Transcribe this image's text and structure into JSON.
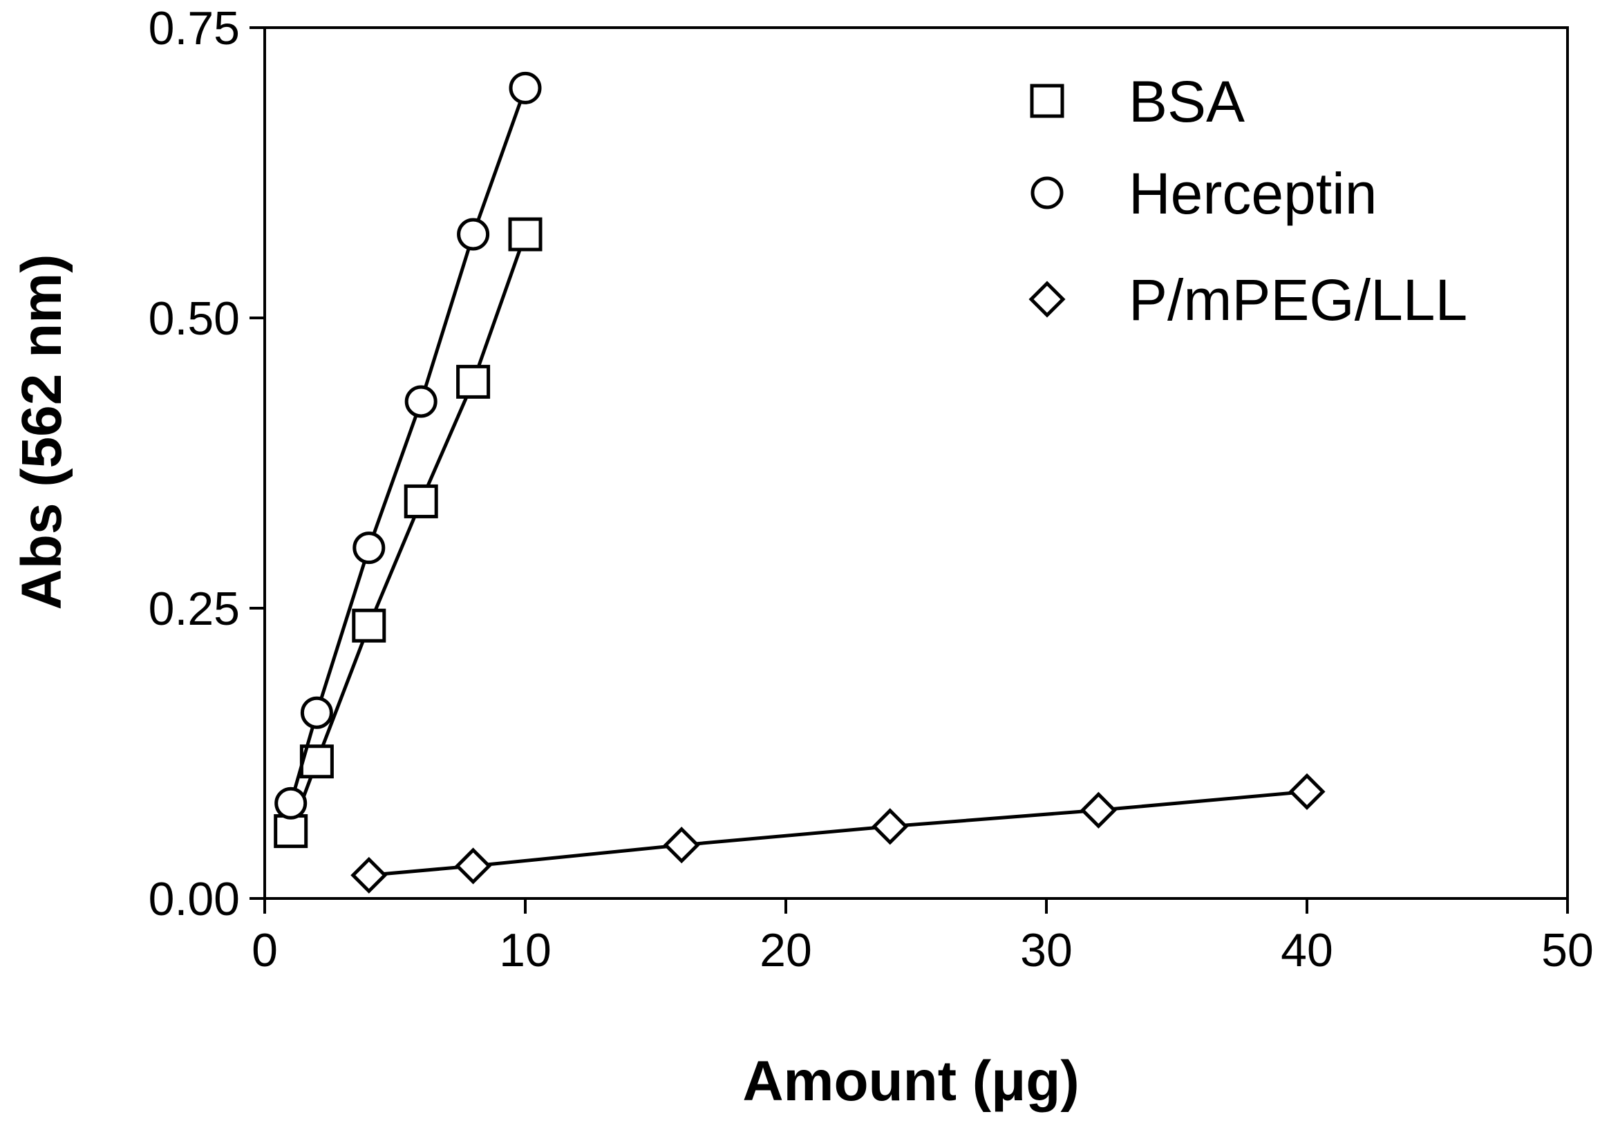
{
  "chart_data": {
    "type": "scatter",
    "title": "",
    "xlabel": "Amount (μg)",
    "ylabel": "Abs (562 nm)",
    "xlim": [
      0,
      50
    ],
    "ylim": [
      0,
      0.75
    ],
    "xticks": [
      "0",
      "10",
      "20",
      "30",
      "40",
      "50"
    ],
    "yticks": [
      "0.00",
      "0.25",
      "0.50",
      "0.75"
    ],
    "xtick_values": [
      0,
      10,
      20,
      30,
      40,
      50
    ],
    "ytick_values": [
      0,
      0.25,
      0.5,
      0.75
    ],
    "grid": false,
    "legend_position": "top-right",
    "series": [
      {
        "name": "BSA",
        "marker": "square",
        "x": [
          1,
          2,
          4,
          6,
          8,
          10
        ],
        "y": [
          0.058,
          0.118,
          0.235,
          0.342,
          0.445,
          0.572
        ]
      },
      {
        "name": "Herceptin",
        "marker": "circle",
        "x": [
          1,
          2,
          4,
          6,
          8,
          10
        ],
        "y": [
          0.082,
          0.16,
          0.302,
          0.428,
          0.572,
          0.698
        ]
      },
      {
        "name": "P/mPEG/LLL",
        "marker": "diamond",
        "x": [
          4,
          8,
          16,
          24,
          32,
          40
        ],
        "y": [
          0.02,
          0.028,
          0.046,
          0.062,
          0.076,
          0.092
        ]
      }
    ]
  }
}
